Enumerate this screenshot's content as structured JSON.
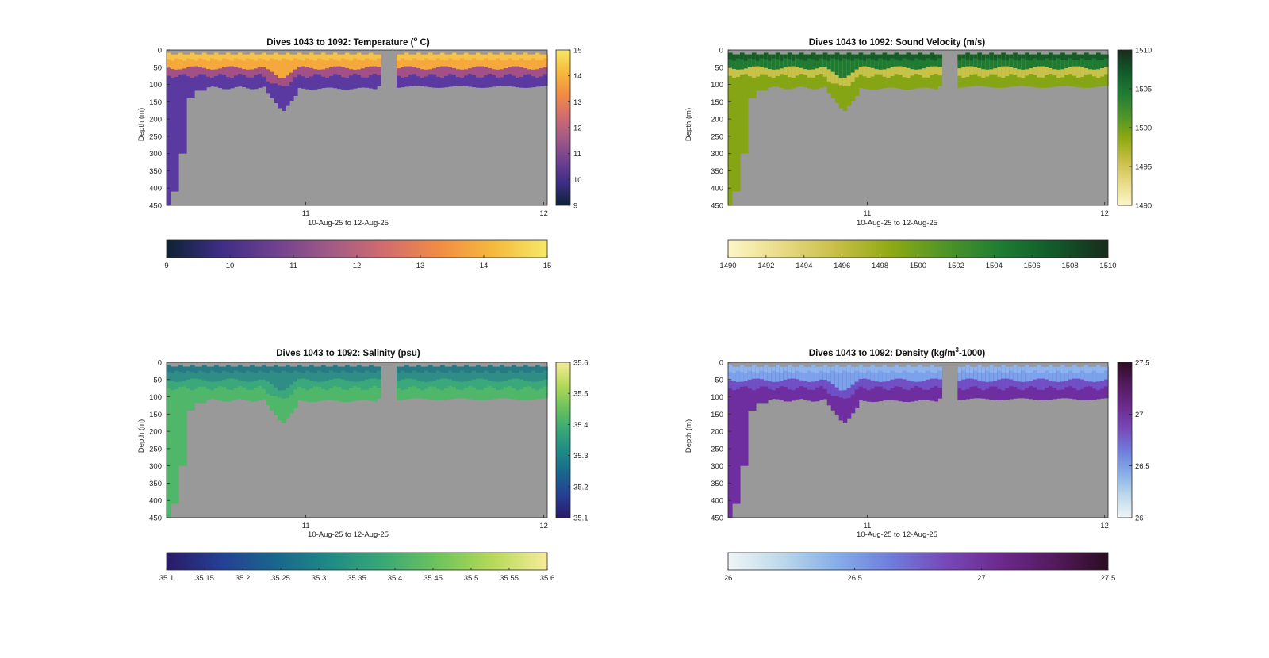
{
  "chart_data": [
    {
      "type": "heatmap",
      "title": "Dives 1043 to 1092: Temperature (",
      "title_unit": "o",
      "title_tail": " C)",
      "xlabel": "10-Aug-25 to 12-Aug-25",
      "ylabel": "Depth (m)",
      "x_ticks": [
        "11",
        "12"
      ],
      "y_ticks": [
        "0",
        "50",
        "100",
        "150",
        "200",
        "250",
        "300",
        "350",
        "400",
        "450"
      ],
      "ylim": [
        0,
        450
      ],
      "colorbar_side_ticks": [
        "9",
        "10",
        "11",
        "12",
        "13",
        "14",
        "15"
      ],
      "colorbar_bottom_ticks": [
        "9",
        "10",
        "11",
        "12",
        "13",
        "14",
        "15"
      ],
      "clim": [
        9,
        15
      ],
      "colormap": [
        "#0d2233",
        "#3d2d86",
        "#70408f",
        "#a05a86",
        "#d06c6f",
        "#f18c45",
        "#f5b93c",
        "#f6e866"
      ],
      "colors": {
        "deep": "#5a39a0",
        "mid": "#a35086",
        "surface": "#f5a93c",
        "surface_top": "#f7c24a"
      }
    },
    {
      "type": "heatmap",
      "title": "Dives 1043 to 1092: Sound Velocity (m/s)",
      "xlabel": "10-Aug-25 to 12-Aug-25",
      "ylabel": "Depth (m)",
      "x_ticks": [
        "11",
        "12"
      ],
      "y_ticks": [
        "0",
        "50",
        "100",
        "150",
        "200",
        "250",
        "300",
        "350",
        "400",
        "450"
      ],
      "ylim": [
        0,
        450
      ],
      "colorbar_side_ticks": [
        "1490",
        "1495",
        "1500",
        "1505",
        "1510"
      ],
      "colorbar_bottom_ticks": [
        "1490",
        "1492",
        "1494",
        "1496",
        "1498",
        "1500",
        "1502",
        "1504",
        "1506",
        "1508",
        "1510"
      ],
      "clim": [
        1490,
        1510
      ],
      "colormap": [
        "#fdf6c6",
        "#e8da86",
        "#c8be46",
        "#8eaa12",
        "#4f9428",
        "#1f7d33",
        "#115a2a",
        "#192b1c"
      ],
      "colors": {
        "deep": "#86a515",
        "mid": "#c9c24a",
        "surface": "#1f7a33",
        "surface_top": "#145c28"
      }
    },
    {
      "type": "heatmap",
      "title": "Dives 1043 to 1092: Salinity (psu)",
      "xlabel": "10-Aug-25 to 12-Aug-25",
      "ylabel": "Depth (m)",
      "x_ticks": [
        "11",
        "12"
      ],
      "y_ticks": [
        "0",
        "50",
        "100",
        "150",
        "200",
        "250",
        "300",
        "350",
        "400",
        "450"
      ],
      "ylim": [
        0,
        450
      ],
      "colorbar_side_ticks": [
        "35.1",
        "35.2",
        "35.3",
        "35.4",
        "35.5",
        "35.6"
      ],
      "colorbar_bottom_ticks": [
        "35.1",
        "35.15",
        "35.2",
        "35.25",
        "35.3",
        "35.35",
        "35.4",
        "35.45",
        "35.5",
        "35.55",
        "35.6"
      ],
      "clim": [
        35.1,
        35.6
      ],
      "colormap": [
        "#2a1a68",
        "#253f94",
        "#19668c",
        "#208a86",
        "#3aa876",
        "#6ec45b",
        "#b6d95a",
        "#f7ec9a"
      ],
      "colors": {
        "deep": "#4fb66a",
        "mid": "#3aa87a",
        "surface": "#2f8d86",
        "surface_top": "#267a86"
      }
    },
    {
      "type": "heatmap",
      "title": "Dives 1043 to 1092: Density (kg/m",
      "title_unit": "3",
      "title_tail": "-1000)",
      "xlabel": "10-Aug-25 to 12-Aug-25",
      "ylabel": "Depth (m)",
      "x_ticks": [
        "11",
        "12"
      ],
      "y_ticks": [
        "0",
        "50",
        "100",
        "150",
        "200",
        "250",
        "300",
        "350",
        "400",
        "450"
      ],
      "ylim": [
        0,
        450
      ],
      "colorbar_side_ticks": [
        "26",
        "26.5",
        "27",
        "27.5"
      ],
      "colorbar_bottom_ticks": [
        "26",
        "26.5",
        "27",
        "27.5"
      ],
      "clim": [
        26,
        27.5
      ],
      "colormap": [
        "#f0f6f6",
        "#bcd8ea",
        "#86aee8",
        "#6f7ddc",
        "#7749b8",
        "#6c2a8e",
        "#541a5e",
        "#2c0c22"
      ],
      "colors": {
        "deep": "#6e2ea0",
        "mid": "#7050c4",
        "surface": "#7ba2ea",
        "surface_top": "#8fb5ee"
      }
    }
  ],
  "colors": {
    "background": "#999999",
    "axes_frame": "#262626"
  }
}
